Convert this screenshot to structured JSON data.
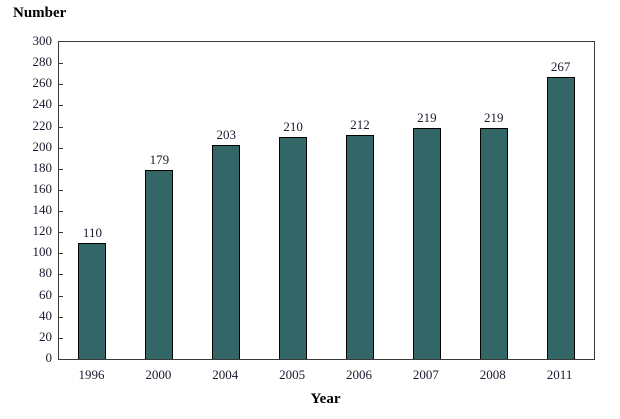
{
  "page": {
    "background_color": "#ffffff"
  },
  "chart_data": {
    "type": "bar",
    "title": "",
    "ylabel": "Number",
    "xlabel": "Year",
    "categories": [
      "1996",
      "2000",
      "2004",
      "2005",
      "2006",
      "2007",
      "2008",
      "2011"
    ],
    "values": [
      110,
      179,
      203,
      210,
      212,
      219,
      219,
      267
    ],
    "value_labels_shown": true,
    "ylim": [
      0,
      300
    ],
    "yticks": [
      0,
      20,
      40,
      60,
      80,
      100,
      120,
      140,
      160,
      180,
      200,
      220,
      240,
      260,
      280,
      300
    ],
    "grid": false,
    "legend": "none",
    "bar_color": "#336666",
    "bar_border_color": "#000000",
    "axis_color": "#3a3a3a",
    "label_color": "#1a1a2e"
  }
}
